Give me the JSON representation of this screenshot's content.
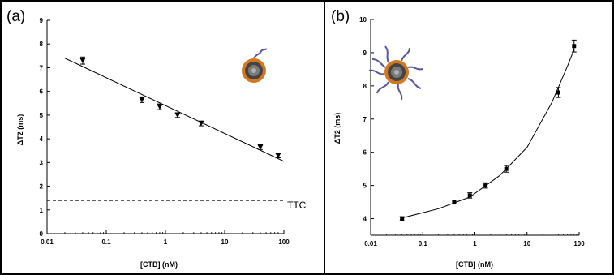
{
  "chart_data": [
    {
      "type": "scatter",
      "panel_label": "(a)",
      "xlabel": "[CTB] (nM)",
      "ylabel": "ΔT2 (ms)",
      "x_scale": "log",
      "xlim": [
        0.01,
        100
      ],
      "ylim": [
        0,
        9
      ],
      "x_ticks": [
        0.01,
        0.1,
        1,
        10,
        100
      ],
      "x_tick_labels": [
        "0.01",
        "0.1",
        "1",
        "10",
        "100"
      ],
      "y_ticks": [
        0,
        1,
        2,
        3,
        4,
        5,
        6,
        7,
        8,
        9
      ],
      "y_tick_labels": [
        "0",
        "1",
        "2",
        "3",
        "4",
        "5",
        "6",
        "7",
        "8",
        "9"
      ],
      "marker": "triangle-down",
      "points": [
        {
          "x": 0.04,
          "y": 7.3,
          "err": 0.15
        },
        {
          "x": 0.4,
          "y": 5.65,
          "err": 0.12
        },
        {
          "x": 0.8,
          "y": 5.35,
          "err": 0.12
        },
        {
          "x": 1.6,
          "y": 5.0,
          "err": 0.1
        },
        {
          "x": 4.0,
          "y": 4.65,
          "err": 0.1
        },
        {
          "x": 40,
          "y": 3.65,
          "err": 0.1
        },
        {
          "x": 80,
          "y": 3.3,
          "err": 0.1
        }
      ],
      "fit": {
        "kind": "linear-in-log",
        "from": [
          0.02,
          7.4
        ],
        "to": [
          100,
          3.05
        ]
      },
      "threshold": {
        "y": 1.4,
        "style": "dashed",
        "label": "TTC"
      },
      "icon": "nanoparticle-bare-icon",
      "colors": {
        "core": "#555555",
        "shell": "#d4781f",
        "ligand": "#5a56a8"
      }
    },
    {
      "type": "scatter",
      "panel_label": "(b)",
      "xlabel": "[CTB] (nM)",
      "ylabel": "ΔT2 (ms)",
      "x_scale": "log",
      "xlim": [
        0.01,
        100
      ],
      "ylim": [
        3.5,
        10
      ],
      "x_ticks": [
        0.01,
        0.1,
        1,
        10,
        100
      ],
      "x_tick_labels": [
        "0.01",
        "0.1",
        "1",
        "10",
        "100"
      ],
      "y_ticks": [
        4,
        5,
        6,
        7,
        8,
        9,
        10
      ],
      "y_tick_labels": [
        "4",
        "5",
        "6",
        "7",
        "8",
        "9",
        "10"
      ],
      "marker": "square",
      "points": [
        {
          "x": 0.04,
          "y": 4.0,
          "err": 0.06
        },
        {
          "x": 0.4,
          "y": 4.5,
          "err": 0.06
        },
        {
          "x": 0.8,
          "y": 4.7,
          "err": 0.08
        },
        {
          "x": 1.6,
          "y": 5.0,
          "err": 0.08
        },
        {
          "x": 4.0,
          "y": 5.5,
          "err": 0.1
        },
        {
          "x": 40,
          "y": 7.8,
          "err": 0.15
        },
        {
          "x": 80,
          "y": 9.2,
          "err": 0.18
        }
      ],
      "fit": {
        "kind": "exponential",
        "samples": [
          [
            0.04,
            4.02
          ],
          [
            0.2,
            4.3
          ],
          [
            0.8,
            4.65
          ],
          [
            3,
            5.3
          ],
          [
            10,
            6.15
          ],
          [
            30,
            7.5
          ],
          [
            60,
            8.6
          ],
          [
            80,
            9.1
          ]
        ]
      },
      "icon": "nanoparticle-functionalized-icon",
      "colors": {
        "core": "#555555",
        "shell": "#d4781f",
        "ligand": "#5a56a8"
      }
    }
  ]
}
